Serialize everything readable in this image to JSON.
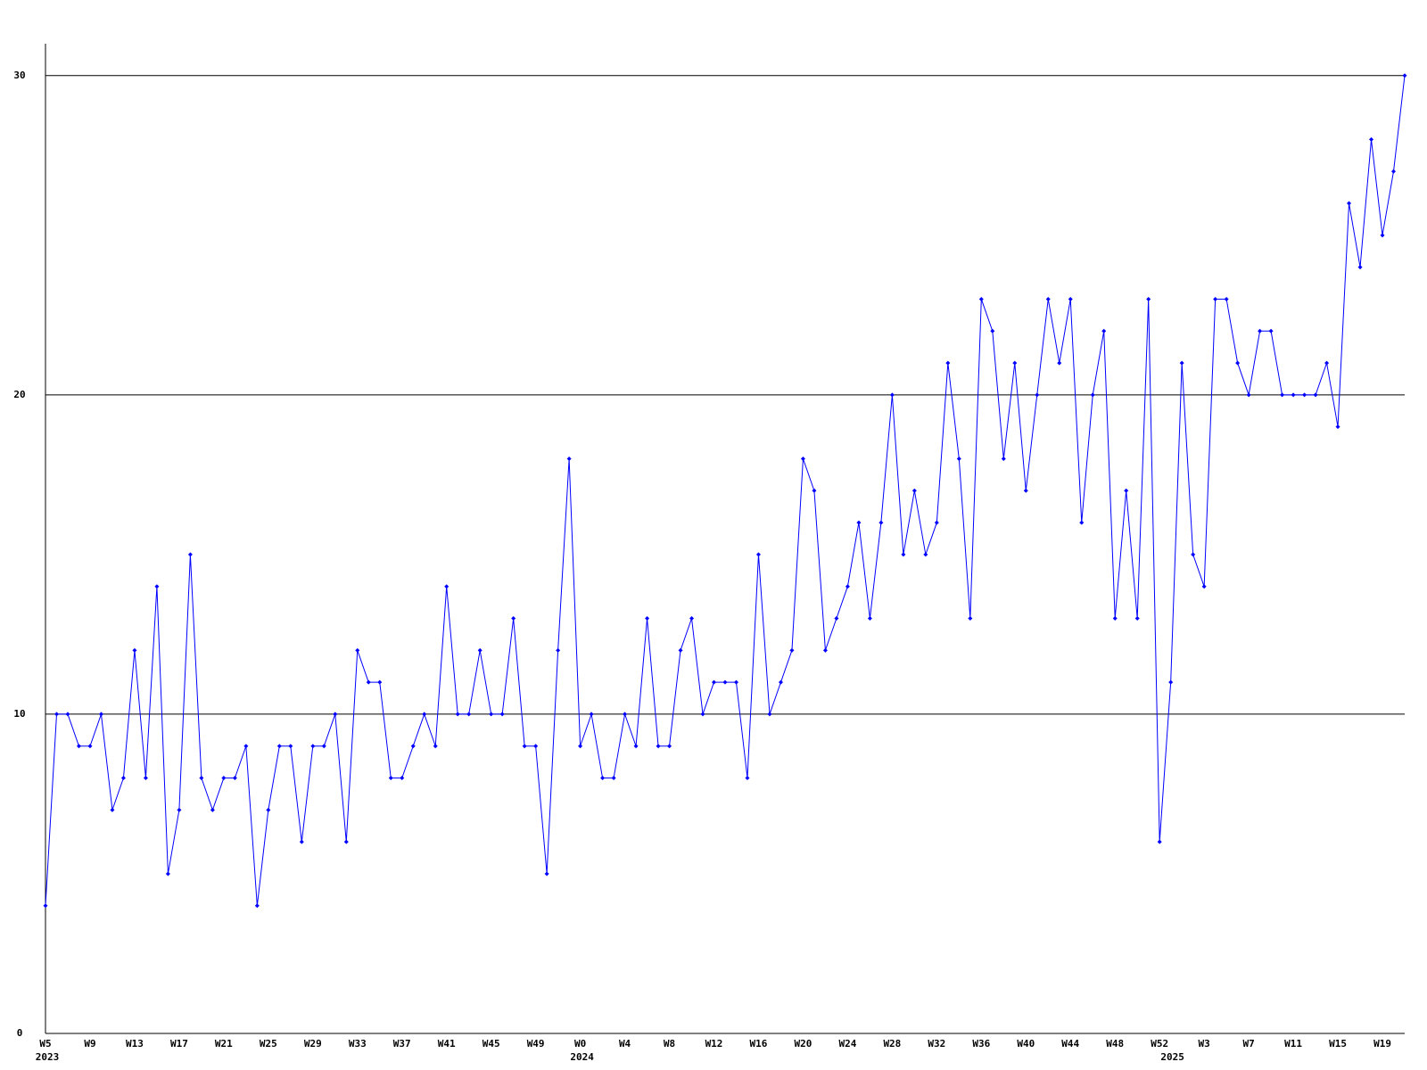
{
  "chart_data": {
    "type": "line",
    "categories": [
      "W5",
      null,
      null,
      null,
      "W9",
      null,
      null,
      null,
      "W13",
      null,
      null,
      null,
      "W17",
      null,
      null,
      null,
      "W21",
      null,
      null,
      null,
      "W25",
      null,
      null,
      null,
      "W29",
      null,
      null,
      null,
      "W33",
      null,
      null,
      null,
      "W37",
      null,
      null,
      null,
      "W41",
      null,
      null,
      null,
      "W45",
      null,
      null,
      null,
      "W49",
      null,
      null,
      null,
      "W0",
      null,
      null,
      null,
      "W4",
      null,
      null,
      null,
      "W8",
      null,
      null,
      null,
      "W12",
      null,
      null,
      null,
      "W16",
      null,
      null,
      null,
      "W20",
      null,
      null,
      null,
      "W24",
      null,
      null,
      null,
      "W28",
      null,
      null,
      null,
      "W32",
      null,
      null,
      null,
      "W36",
      null,
      null,
      null,
      "W40",
      null,
      null,
      null,
      "W44",
      null,
      null,
      null,
      "W48",
      null,
      null,
      null,
      "W52",
      null,
      null,
      null,
      "W3",
      null,
      null,
      null,
      "W7",
      null,
      null,
      null,
      "W11",
      null,
      null,
      null,
      "W15",
      null,
      null,
      null,
      "W19",
      null,
      null
    ],
    "category_years": [
      "2023",
      null,
      null,
      null,
      null,
      null,
      null,
      null,
      null,
      null,
      null,
      null,
      null,
      null,
      null,
      null,
      null,
      null,
      null,
      null,
      null,
      null,
      null,
      null,
      null,
      null,
      null,
      null,
      null,
      null,
      null,
      null,
      null,
      null,
      null,
      null,
      null,
      null,
      null,
      null,
      null,
      null,
      null,
      null,
      null,
      null,
      null,
      null,
      "2024",
      null,
      null,
      null,
      null,
      null,
      null,
      null,
      null,
      null,
      null,
      null,
      null,
      null,
      null,
      null,
      null,
      null,
      null,
      null,
      null,
      null,
      null,
      null,
      null,
      null,
      null,
      null,
      null,
      null,
      null,
      null,
      null,
      null,
      null,
      null,
      null,
      null,
      null,
      null,
      null,
      null,
      null,
      null,
      null,
      null,
      null,
      null,
      null,
      null,
      null,
      null,
      null,
      "2025",
      null,
      null,
      null,
      null,
      null,
      null,
      null,
      null,
      null,
      null,
      null,
      null,
      null,
      null,
      null,
      null,
      null,
      null,
      null,
      null
    ],
    "series": [
      {
        "color": "#0000ff",
        "values": [
          4,
          10,
          10,
          9,
          9,
          10,
          7,
          8,
          12,
          8,
          14,
          5,
          7,
          15,
          8,
          7,
          8,
          8,
          9,
          4,
          7,
          9,
          9,
          6,
          9,
          9,
          10,
          6,
          12,
          11,
          11,
          8,
          8,
          9,
          10,
          9,
          14,
          10,
          10,
          12,
          10,
          10,
          13,
          9,
          9,
          5,
          12,
          18,
          9,
          10,
          8,
          8,
          10,
          9,
          13,
          9,
          9,
          12,
          13,
          10,
          11,
          11,
          11,
          8,
          15,
          10,
          11,
          12,
          18,
          17,
          12,
          13,
          14,
          16,
          13,
          16,
          20,
          15,
          17,
          15,
          16,
          21,
          18,
          13,
          23,
          22,
          18,
          21,
          17,
          20,
          23,
          21,
          23,
          16,
          20,
          22,
          13,
          17,
          13,
          23,
          6,
          11,
          21,
          15,
          14,
          23,
          23,
          21,
          20,
          22,
          22,
          20,
          20,
          20,
          20,
          21,
          19,
          26,
          24,
          28,
          25,
          27,
          30
        ]
      }
    ],
    "ylim": [
      0,
      31
    ],
    "yticks": [
      0,
      10,
      20,
      30
    ],
    "grid": true
  }
}
